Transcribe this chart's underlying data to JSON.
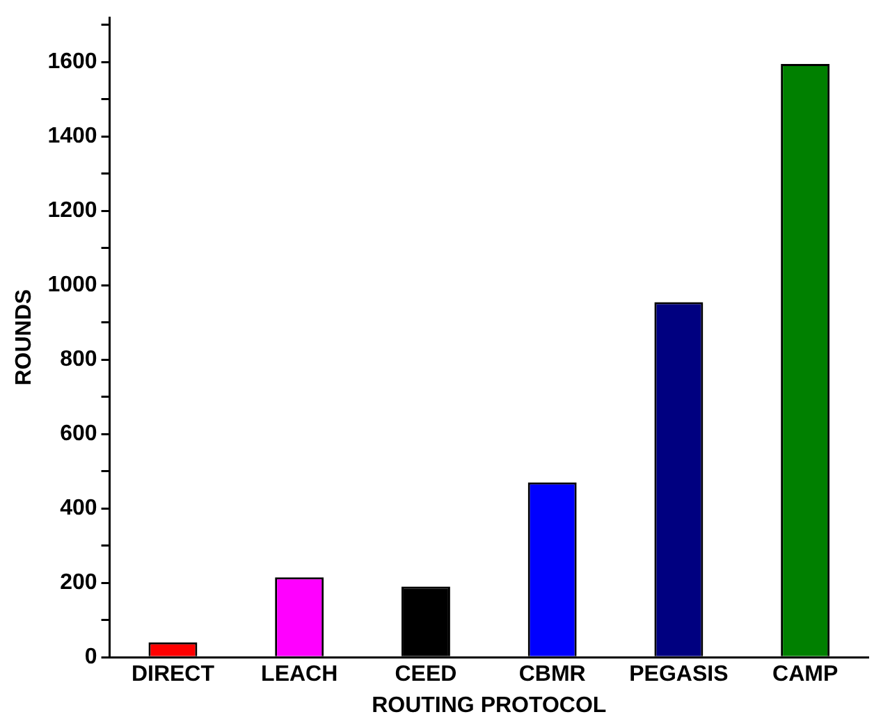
{
  "chart_data": {
    "type": "bar",
    "xlabel": "ROUTING PROTOCOL",
    "ylabel": "ROUNDS",
    "categories": [
      "DIRECT",
      "LEACH",
      "CEED",
      "CBMR",
      "PEGASIS",
      "CAMP"
    ],
    "values": [
      40,
      215,
      190,
      470,
      955,
      1595
    ],
    "colors": [
      "#ff0000",
      "#ff00ff",
      "#000000",
      "#0000ff",
      "#000080",
      "#008000"
    ],
    "ylim": [
      0,
      1720
    ],
    "yticks": [
      0,
      {
        "value": 100,
        "label": null
      },
      200,
      {
        "value": 300,
        "label": null
      },
      400,
      {
        "value": 500,
        "label": null
      },
      600,
      {
        "value": 700,
        "label": null
      },
      800,
      {
        "value": 900,
        "label": null
      },
      1000,
      {
        "value": 1100,
        "label": null
      },
      1200,
      {
        "value": 1300,
        "label": null
      },
      1400,
      {
        "value": 1500,
        "label": null
      },
      1600,
      {
        "value": 1700,
        "label": null
      }
    ],
    "grid": false,
    "legend": false
  }
}
